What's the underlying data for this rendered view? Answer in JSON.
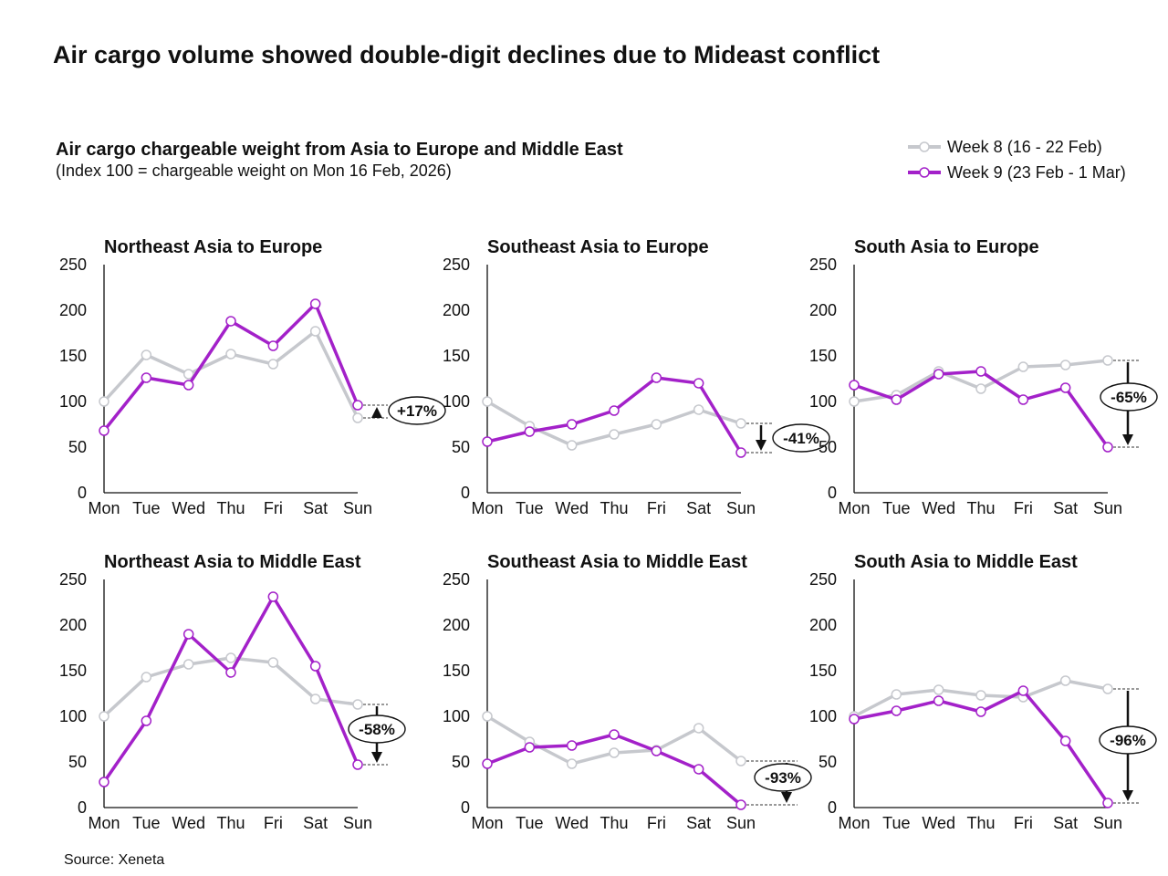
{
  "title": "Air cargo volume showed double-digit declines due to Mideast conflict",
  "subtitle": "Air cargo chargeable weight from Asia to Europe and Middle East",
  "subtitle_note": "(Index 100 = chargeable weight on Mon 16 Feb, 2026)",
  "source": "Source: Xeneta",
  "colors": {
    "week8": "#c6c8cd",
    "week9": "#a321c9"
  },
  "legend": [
    "Week 8 (16 - 22 Feb)",
    "Week 9 (23 Feb - 1 Mar)"
  ],
  "chart_data": [
    {
      "type": "line",
      "title": "Northeast Asia to Europe",
      "categories": [
        "Mon",
        "Tue",
        "Wed",
        "Thu",
        "Fri",
        "Sat",
        "Sun"
      ],
      "ylim": [
        0,
        250
      ],
      "yticks": [
        0,
        50,
        100,
        150,
        200,
        250
      ],
      "series": [
        {
          "name": "Week 8 (16 - 22 Feb)",
          "values": [
            100,
            151,
            130,
            152,
            141,
            177,
            82
          ]
        },
        {
          "name": "Week 9 (23 Feb - 1 Mar)",
          "values": [
            68,
            126,
            118,
            188,
            161,
            207,
            96
          ]
        }
      ],
      "annotation": "+17%"
    },
    {
      "type": "line",
      "title": "Southeast Asia to Europe",
      "categories": [
        "Mon",
        "Tue",
        "Wed",
        "Thu",
        "Fri",
        "Sat",
        "Sun"
      ],
      "ylim": [
        0,
        250
      ],
      "yticks": [
        0,
        50,
        100,
        150,
        200,
        250
      ],
      "series": [
        {
          "name": "Week 8 (16 - 22 Feb)",
          "values": [
            100,
            73,
            52,
            64,
            75,
            91,
            76
          ]
        },
        {
          "name": "Week 9 (23 Feb - 1 Mar)",
          "values": [
            56,
            67,
            75,
            90,
            126,
            120,
            44
          ]
        }
      ],
      "annotation": "-41%"
    },
    {
      "type": "line",
      "title": "South Asia to Europe",
      "categories": [
        "Mon",
        "Tue",
        "Wed",
        "Thu",
        "Fri",
        "Sat",
        "Sun"
      ],
      "ylim": [
        0,
        250
      ],
      "yticks": [
        0,
        50,
        100,
        150,
        200,
        250
      ],
      "series": [
        {
          "name": "Week 8 (16 - 22 Feb)",
          "values": [
            100,
            107,
            133,
            114,
            138,
            140,
            145
          ]
        },
        {
          "name": "Week 9 (23 Feb - 1 Mar)",
          "values": [
            118,
            102,
            130,
            133,
            102,
            115,
            50
          ]
        }
      ],
      "annotation": "-65%"
    },
    {
      "type": "line",
      "title": "Northeast Asia to Middle East",
      "categories": [
        "Mon",
        "Tue",
        "Wed",
        "Thu",
        "Fri",
        "Sat",
        "Sun"
      ],
      "ylim": [
        0,
        250
      ],
      "yticks": [
        0,
        50,
        100,
        150,
        200,
        250
      ],
      "series": [
        {
          "name": "Week 8 (16 - 22 Feb)",
          "values": [
            100,
            143,
            157,
            164,
            159,
            119,
            113
          ]
        },
        {
          "name": "Week 9 (23 Feb - 1 Mar)",
          "values": [
            28,
            95,
            190,
            148,
            231,
            155,
            47
          ]
        }
      ],
      "annotation": "-58%"
    },
    {
      "type": "line",
      "title": "Southeast Asia to Middle East",
      "categories": [
        "Mon",
        "Tue",
        "Wed",
        "Thu",
        "Fri",
        "Sat",
        "Sun"
      ],
      "ylim": [
        0,
        250
      ],
      "yticks": [
        0,
        50,
        100,
        150,
        200,
        250
      ],
      "series": [
        {
          "name": "Week 8 (16 - 22 Feb)",
          "values": [
            100,
            72,
            48,
            60,
            63,
            87,
            51
          ]
        },
        {
          "name": "Week 9 (23 Feb - 1 Mar)",
          "values": [
            48,
            66,
            68,
            80,
            62,
            42,
            3
          ]
        }
      ],
      "annotation": "-93%"
    },
    {
      "type": "line",
      "title": "South Asia to Middle East",
      "categories": [
        "Mon",
        "Tue",
        "Wed",
        "Thu",
        "Fri",
        "Sat",
        "Sun"
      ],
      "ylim": [
        0,
        250
      ],
      "yticks": [
        0,
        50,
        100,
        150,
        200,
        250
      ],
      "series": [
        {
          "name": "Week 8 (16 - 22 Feb)",
          "values": [
            100,
            124,
            129,
            123,
            121,
            139,
            130
          ]
        },
        {
          "name": "Week 9 (23 Feb - 1 Mar)",
          "values": [
            97,
            106,
            117,
            105,
            128,
            73,
            5
          ]
        }
      ],
      "annotation": "-96%"
    }
  ]
}
